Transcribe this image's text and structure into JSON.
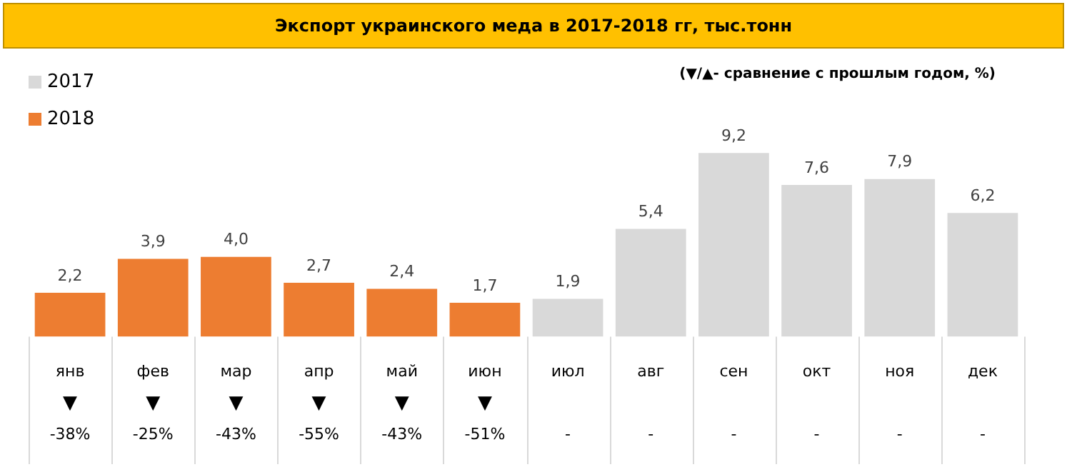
{
  "chart_data": {
    "type": "bar",
    "title": "Экспорт украинского меда в 2017-2018 гг, тыс.тонн",
    "categories": [
      "янв",
      "фев",
      "мар",
      "апр",
      "май",
      "июн",
      "июл",
      "авг",
      "сен",
      "окт",
      "ноя",
      "дек"
    ],
    "series": [
      {
        "name": "2017",
        "color": "#d9d9d9",
        "values": [
          null,
          null,
          null,
          null,
          null,
          null,
          1.9,
          5.4,
          9.2,
          7.6,
          7.9,
          6.2
        ],
        "value_labels": [
          null,
          null,
          null,
          null,
          null,
          null,
          "1,9",
          "5,4",
          "9,2",
          "7,6",
          "7,9",
          "6,2"
        ]
      },
      {
        "name": "2018",
        "color": "#ed7d31",
        "values": [
          2.2,
          3.9,
          4.0,
          2.7,
          2.4,
          1.7,
          null,
          null,
          null,
          null,
          null,
          null
        ],
        "value_labels": [
          "2,2",
          "3,9",
          "4,0",
          "2,7",
          "2,4",
          "1,7",
          null,
          null,
          null,
          null,
          null,
          null
        ]
      }
    ],
    "legend": "top left",
    "annotations": [
      "(▼/▲- сравнение с прошлым годом, %)",
      "▼\n-38%",
      "▼\n-25%",
      "▼\n-43%",
      "▼\n-55%",
      "▼\n-43%",
      "▼\n-51%",
      "-",
      "-",
      "-",
      "-",
      "-",
      "-"
    ]
  }
}
